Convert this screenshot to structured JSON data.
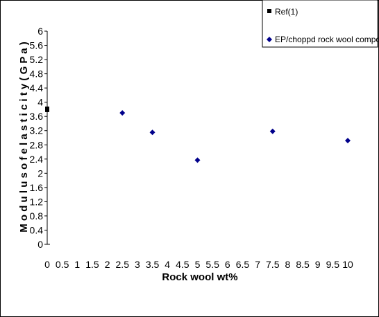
{
  "chart_data": {
    "type": "scatter",
    "xlabel": "Rock wool wt%",
    "ylabel": "M o d u l u s  o f e l a s t i c i t y  ( G P a )",
    "xlim": [
      0,
      10
    ],
    "ylim": [
      0,
      6
    ],
    "x_ticks": [
      "0",
      "0.5",
      "1",
      "1.5",
      "2",
      "2.5",
      "3",
      "3.5",
      "4",
      "4.5",
      "5",
      "5.5",
      "6",
      "6.5",
      "7",
      "7.5",
      "8",
      "8.5",
      "9",
      "9.5",
      "10"
    ],
    "y_ticks": [
      "0",
      "0.4",
      "0.8",
      "1.2",
      "1.6",
      "2",
      "2.4",
      "2.8",
      "3.2",
      "3.6",
      "4",
      "4.4",
      "4.8",
      "5.2",
      "5.6",
      "6"
    ],
    "grid": false,
    "legend_position": "top-right",
    "series": [
      {
        "name": "Ref(1)",
        "marker": "square",
        "color": "#000000",
        "points": [
          {
            "x": 0,
            "y": 3.8
          }
        ]
      },
      {
        "name": "EP/choppd rock wool composite",
        "marker": "diamond",
        "color": "#00008B",
        "points": [
          {
            "x": 2.5,
            "y": 3.7
          },
          {
            "x": 3.5,
            "y": 3.15
          },
          {
            "x": 5,
            "y": 2.37
          },
          {
            "x": 7.5,
            "y": 3.18
          },
          {
            "x": 10,
            "y": 2.92
          }
        ]
      }
    ]
  }
}
